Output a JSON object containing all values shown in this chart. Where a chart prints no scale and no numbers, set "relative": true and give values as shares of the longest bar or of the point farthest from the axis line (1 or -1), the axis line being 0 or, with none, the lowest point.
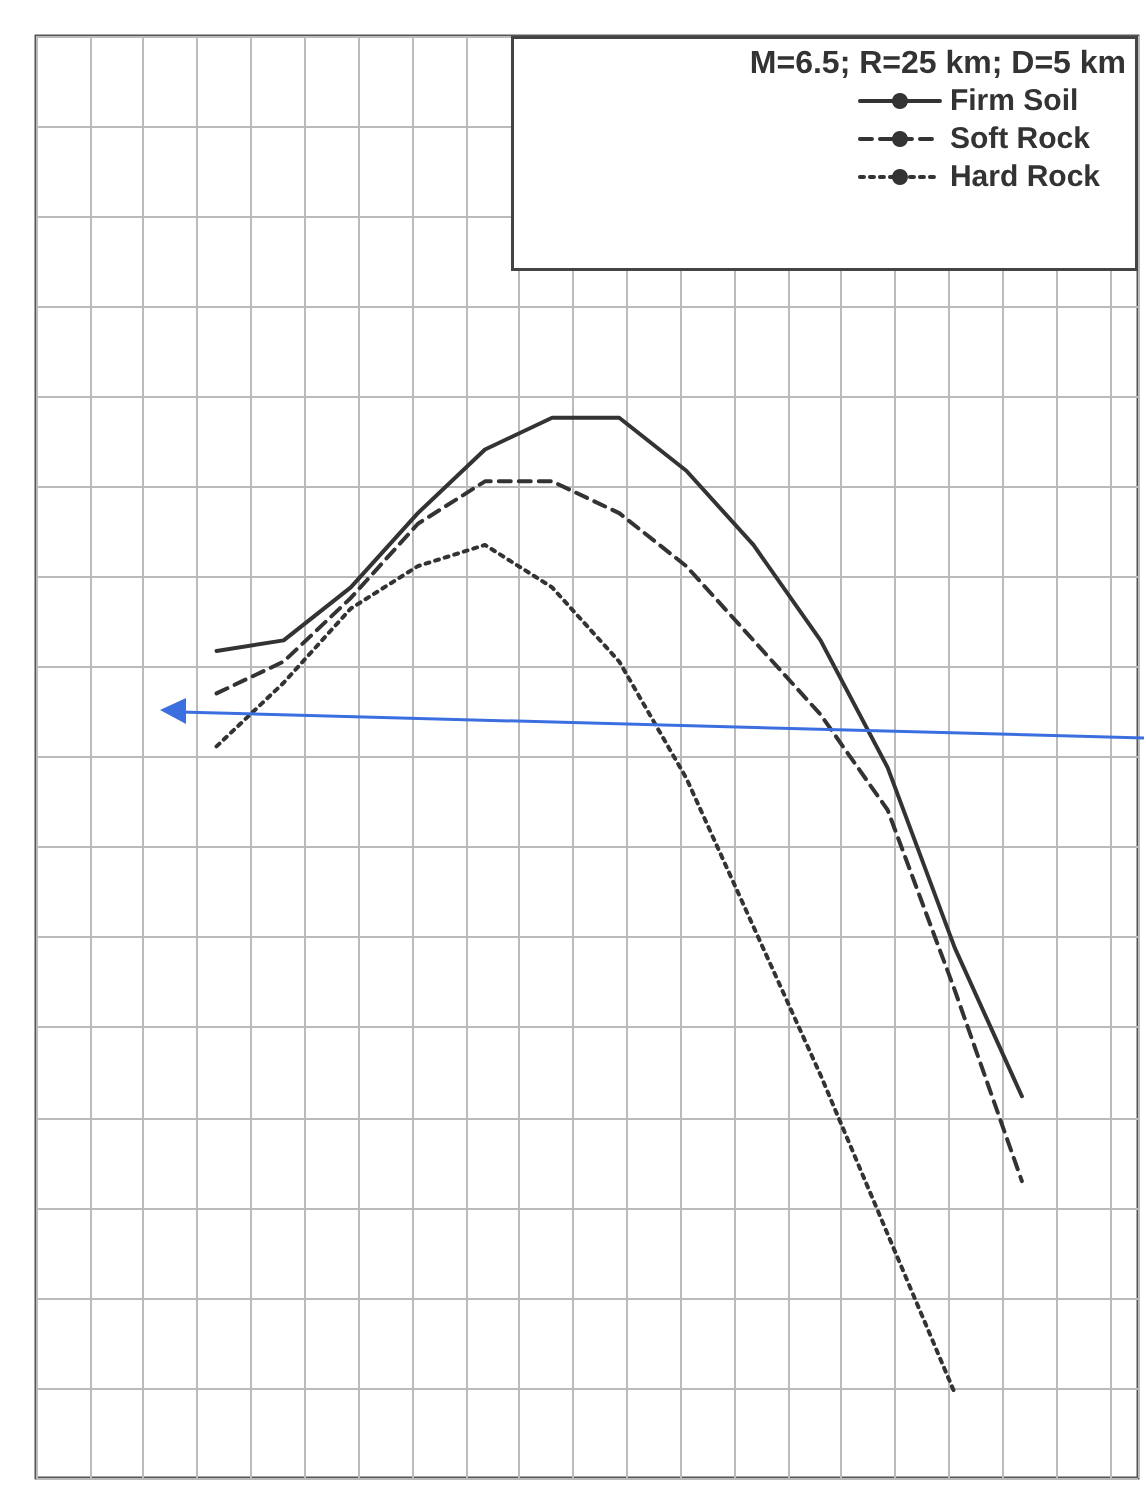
{
  "chart_data": {
    "type": "line",
    "relative": true,
    "legend_title": "M=6.5; R=25 km; D=5 km",
    "legend": "top right",
    "grid": true,
    "marker": "none",
    "categories": [
      null,
      null,
      null,
      null,
      null,
      null,
      null,
      null,
      null,
      null,
      null,
      null,
      null
    ],
    "series": [
      {
        "name": "Firm Soil",
        "color": "#333333",
        "line_style": "solid",
        "values": [
          0.78,
          0.79,
          0.84,
          0.91,
          0.97,
          1.0,
          1.0,
          0.95,
          0.88,
          0.79,
          0.67,
          0.5,
          0.36
        ]
      },
      {
        "name": "Soft Rock",
        "color": "#333333",
        "line_style": "dashed",
        "values": [
          0.74,
          0.77,
          0.83,
          0.9,
          0.94,
          0.94,
          0.91,
          0.86,
          0.79,
          0.72,
          0.63,
          0.46,
          0.28
        ]
      },
      {
        "name": "Hard Rock",
        "color": "#333333",
        "line_style": "dotted",
        "values": [
          0.69,
          0.75,
          0.82,
          0.86,
          0.88,
          0.84,
          0.77,
          0.66,
          0.52,
          0.38,
          0.23,
          0.08,
          null
        ]
      }
    ]
  }
}
